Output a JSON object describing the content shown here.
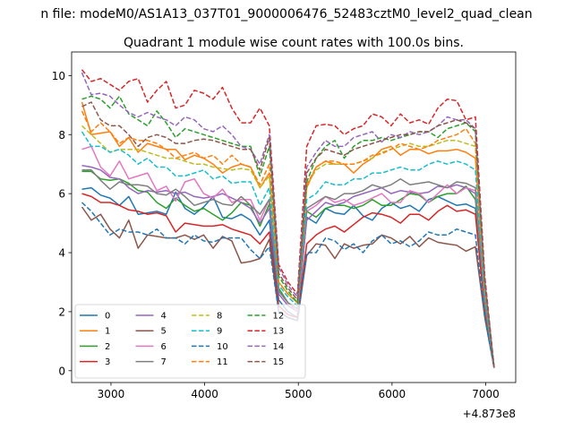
{
  "suptitle": "n file: modeM0/AS1A13_037T01_9000006476_52483cztM0_level2_quad_clean",
  "chart_data": {
    "type": "line",
    "title": "Quadrant 1 module wise count rates with 100.0s bins.",
    "xlabel": "",
    "ylabel": "",
    "x_offset_label": "+4.873e8",
    "xlim": [
      2580,
      7320
    ],
    "ylim": [
      -0.4,
      10.8
    ],
    "xticks": [
      3000,
      4000,
      5000,
      6000,
      7000
    ],
    "yticks": [
      0,
      2,
      4,
      6,
      8,
      10
    ],
    "grid": false,
    "legend_placement": "lower-left",
    "legend_columns": 4,
    "x": [
      2690,
      2790,
      2890,
      2990,
      3090,
      3190,
      3290,
      3390,
      3490,
      3590,
      3690,
      3790,
      3890,
      3990,
      4090,
      4190,
      4290,
      4390,
      4490,
      4590,
      4690,
      4790,
      4890,
      4990,
      5090,
      5190,
      5290,
      5390,
      5490,
      5590,
      5690,
      5790,
      5890,
      5990,
      6090,
      6190,
      6290,
      6390,
      6490,
      6590,
      6690,
      6790,
      6890,
      6990,
      7090
    ],
    "series": [
      {
        "name": "0",
        "color": "#1f77b4",
        "dash": "solid",
        "values": [
          6.15,
          6.2,
          5.95,
          5.85,
          5.6,
          5.9,
          5.3,
          5.35,
          5.4,
          5.3,
          6.05,
          5.5,
          5.3,
          5.55,
          5.9,
          5.2,
          5.15,
          5.3,
          5.1,
          4.6,
          5.1,
          2.4,
          2.0,
          1.8,
          5.2,
          5.0,
          5.5,
          5.35,
          5.3,
          5.6,
          5.25,
          5.1,
          5.5,
          5.7,
          5.5,
          5.6,
          5.4,
          5.8,
          5.9,
          5.75,
          5.6,
          5.65,
          5.5,
          2.0,
          0.1
        ]
      },
      {
        "name": "1",
        "color": "#ff7f0e",
        "dash": "solid",
        "values": [
          9.1,
          8.0,
          8.05,
          8.1,
          7.6,
          7.9,
          7.4,
          7.7,
          7.6,
          7.5,
          7.5,
          7.15,
          7.3,
          7.2,
          7.0,
          6.7,
          6.9,
          7.0,
          6.9,
          6.2,
          6.7,
          3.0,
          2.6,
          2.3,
          6.2,
          6.9,
          7.1,
          7.0,
          7.0,
          6.7,
          7.0,
          7.2,
          7.5,
          7.6,
          7.3,
          7.5,
          7.5,
          7.35,
          7.45,
          7.45,
          7.5,
          7.4,
          7.2,
          2.6,
          0.1
        ]
      },
      {
        "name": "2",
        "color": "#2ca02c",
        "dash": "solid",
        "values": [
          6.75,
          6.75,
          6.5,
          6.45,
          6.5,
          6.35,
          6.1,
          6.05,
          5.7,
          5.5,
          5.85,
          5.6,
          5.4,
          5.5,
          5.3,
          5.1,
          5.35,
          5.7,
          5.6,
          4.9,
          5.65,
          2.8,
          2.3,
          2.1,
          5.4,
          5.2,
          5.5,
          5.6,
          5.6,
          5.5,
          5.6,
          5.8,
          5.6,
          5.6,
          5.8,
          6.0,
          5.95,
          5.7,
          5.9,
          6.0,
          6.0,
          6.25,
          5.8,
          2.2,
          0.1
        ]
      },
      {
        "name": "3",
        "color": "#d62728",
        "dash": "solid",
        "values": [
          6.0,
          5.9,
          5.7,
          5.7,
          5.6,
          5.45,
          5.4,
          5.3,
          5.35,
          5.25,
          4.7,
          5.0,
          4.95,
          4.9,
          4.9,
          4.95,
          4.8,
          4.7,
          4.6,
          4.3,
          4.7,
          2.2,
          1.9,
          1.8,
          4.3,
          4.6,
          4.8,
          4.9,
          4.7,
          4.95,
          5.2,
          5.35,
          5.3,
          5.2,
          5.0,
          5.3,
          5.3,
          5.1,
          5.4,
          5.6,
          5.4,
          5.45,
          5.3,
          2.0,
          0.1
        ]
      },
      {
        "name": "4",
        "color": "#9467bd",
        "dash": "solid",
        "values": [
          6.95,
          6.9,
          6.8,
          6.55,
          6.5,
          6.2,
          6.0,
          6.1,
          6.05,
          6.1,
          6.0,
          6.05,
          5.9,
          5.85,
          5.9,
          6.0,
          5.85,
          5.7,
          5.5,
          5.0,
          5.5,
          2.6,
          2.2,
          2.0,
          5.1,
          5.4,
          5.7,
          5.6,
          5.7,
          5.9,
          6.0,
          6.1,
          6.2,
          6.0,
          6.1,
          6.05,
          6.0,
          6.05,
          6.25,
          6.2,
          6.3,
          6.2,
          6.0,
          2.4,
          0.1
        ]
      },
      {
        "name": "5",
        "color": "#8c564b",
        "dash": "solid",
        "values": [
          5.55,
          5.1,
          5.3,
          4.8,
          4.5,
          5.1,
          4.15,
          4.6,
          4.55,
          4.5,
          4.5,
          4.6,
          4.45,
          4.6,
          4.15,
          4.55,
          4.4,
          3.65,
          3.7,
          3.8,
          4.45,
          2.0,
          1.8,
          1.7,
          3.9,
          4.3,
          4.25,
          3.8,
          4.3,
          4.15,
          4.25,
          4.3,
          4.6,
          4.5,
          4.3,
          4.55,
          4.2,
          4.5,
          4.35,
          4.3,
          4.25,
          4.05,
          4.2,
          1.8,
          0.1
        ]
      },
      {
        "name": "6",
        "color": "#e377c2",
        "dash": "solid",
        "values": [
          7.5,
          7.6,
          6.9,
          6.6,
          7.1,
          6.5,
          6.6,
          6.7,
          6.1,
          6.25,
          5.75,
          6.4,
          6.5,
          6.0,
          5.85,
          6.15,
          5.7,
          5.8,
          5.8,
          5.1,
          5.8,
          2.7,
          2.3,
          2.0,
          5.4,
          5.6,
          5.9,
          5.7,
          5.8,
          5.6,
          5.7,
          5.85,
          6.0,
          5.7,
          5.7,
          6.1,
          6.0,
          5.7,
          6.0,
          6.3,
          6.0,
          6.2,
          6.1,
          2.3,
          0.1
        ]
      },
      {
        "name": "7",
        "color": "#7f7f7f",
        "dash": "solid",
        "values": [
          6.8,
          6.8,
          6.45,
          6.15,
          6.4,
          6.3,
          6.3,
          6.25,
          6.0,
          5.95,
          6.15,
          5.9,
          5.6,
          5.7,
          5.8,
          5.65,
          5.6,
          5.9,
          5.6,
          5.3,
          5.8,
          2.7,
          2.3,
          2.1,
          5.5,
          5.7,
          5.9,
          5.8,
          6.0,
          6.0,
          6.1,
          6.3,
          6.2,
          6.3,
          6.5,
          6.3,
          6.35,
          6.4,
          6.3,
          6.2,
          6.4,
          6.35,
          6.2,
          2.3,
          0.1
        ]
      },
      {
        "name": "8",
        "color": "#bcbd22",
        "dash": "dashed",
        "values": [
          8.3,
          8.0,
          7.7,
          7.4,
          7.5,
          7.5,
          7.5,
          7.4,
          7.3,
          7.2,
          7.2,
          7.1,
          7.0,
          7.0,
          6.9,
          6.85,
          6.8,
          6.85,
          6.8,
          6.2,
          6.6,
          3.0,
          2.6,
          2.3,
          6.3,
          6.8,
          7.0,
          7.0,
          7.0,
          7.0,
          7.1,
          7.2,
          7.4,
          7.5,
          7.6,
          7.7,
          7.6,
          7.6,
          7.7,
          7.8,
          7.8,
          7.7,
          7.6,
          2.7,
          0.1
        ]
      },
      {
        "name": "9",
        "color": "#17becf",
        "dash": "dashed",
        "values": [
          8.1,
          7.6,
          7.6,
          7.4,
          7.5,
          7.3,
          7.0,
          7.2,
          6.9,
          6.9,
          6.6,
          6.6,
          6.7,
          6.8,
          6.5,
          6.6,
          6.35,
          6.4,
          6.4,
          5.6,
          6.2,
          2.9,
          2.5,
          2.2,
          5.8,
          6.0,
          6.4,
          6.3,
          6.3,
          6.5,
          6.5,
          6.7,
          6.7,
          6.8,
          6.9,
          6.8,
          6.8,
          7.0,
          7.1,
          7.0,
          7.1,
          7.0,
          6.8,
          2.5,
          0.1
        ]
      },
      {
        "name": "10",
        "color": "#1f77b4",
        "dash": "dashed",
        "values": [
          5.7,
          5.4,
          5.0,
          4.6,
          4.8,
          4.7,
          4.7,
          4.6,
          4.8,
          4.5,
          4.5,
          4.3,
          4.6,
          4.4,
          4.35,
          4.5,
          4.5,
          4.5,
          4.1,
          3.8,
          4.2,
          2.0,
          1.8,
          1.7,
          4.0,
          4.0,
          4.5,
          4.4,
          4.1,
          4.3,
          4.0,
          4.4,
          4.6,
          4.3,
          4.4,
          4.2,
          4.4,
          4.7,
          4.6,
          4.6,
          4.8,
          4.7,
          4.6,
          1.8,
          0.1
        ]
      },
      {
        "name": "11",
        "color": "#ff7f0e",
        "dash": "dashed",
        "values": [
          8.8,
          8.1,
          8.4,
          8.1,
          7.7,
          7.9,
          7.8,
          7.8,
          7.7,
          7.5,
          7.2,
          7.3,
          7.4,
          7.2,
          7.3,
          7.0,
          7.3,
          7.0,
          6.9,
          6.3,
          7.0,
          3.0,
          2.6,
          2.3,
          6.3,
          6.9,
          7.1,
          7.1,
          7.0,
          7.0,
          7.1,
          7.3,
          7.35,
          7.5,
          7.7,
          7.6,
          7.5,
          7.6,
          7.8,
          7.9,
          8.0,
          8.2,
          7.7,
          2.8,
          0.1
        ]
      },
      {
        "name": "12",
        "color": "#2ca02c",
        "dash": "dashed",
        "values": [
          9.2,
          9.3,
          9.2,
          8.9,
          9.3,
          8.7,
          8.5,
          8.3,
          8.8,
          8.4,
          7.9,
          8.2,
          8.1,
          8.0,
          7.9,
          7.8,
          7.7,
          7.6,
          7.6,
          6.6,
          7.6,
          3.2,
          2.7,
          2.3,
          6.4,
          7.2,
          7.6,
          7.8,
          7.2,
          7.6,
          7.8,
          7.8,
          7.9,
          7.8,
          7.9,
          8.0,
          8.1,
          8.1,
          7.9,
          8.2,
          8.3,
          8.4,
          8.1,
          3.0,
          0.1
        ]
      },
      {
        "name": "13",
        "color": "#d62728",
        "dash": "dashed",
        "values": [
          10.2,
          9.8,
          9.9,
          9.7,
          9.5,
          9.8,
          9.9,
          9.1,
          9.5,
          9.8,
          8.9,
          9.0,
          9.5,
          9.4,
          9.2,
          9.6,
          8.9,
          8.4,
          8.4,
          8.9,
          8.3,
          3.6,
          3.0,
          2.6,
          7.6,
          8.3,
          8.35,
          8.3,
          8.0,
          8.2,
          8.3,
          8.7,
          8.6,
          8.3,
          8.7,
          8.4,
          8.5,
          8.35,
          8.9,
          9.2,
          9.15,
          8.5,
          8.6,
          3.2,
          0.1
        ]
      },
      {
        "name": "14",
        "color": "#9467bd",
        "dash": "dashed",
        "values": [
          10.1,
          9.35,
          9.4,
          9.3,
          9.0,
          8.75,
          8.6,
          8.75,
          8.6,
          8.5,
          8.3,
          8.6,
          8.5,
          8.2,
          8.1,
          8.3,
          8.0,
          7.6,
          7.5,
          7.0,
          8.0,
          3.5,
          2.9,
          2.5,
          6.9,
          7.4,
          7.8,
          7.6,
          7.6,
          7.9,
          8.0,
          8.1,
          7.75,
          8.0,
          7.9,
          8.1,
          8.0,
          8.1,
          8.3,
          8.6,
          8.5,
          8.5,
          8.2,
          3.1,
          0.1
        ]
      },
      {
        "name": "15",
        "color": "#8c564b",
        "dash": "dashed",
        "values": [
          8.95,
          9.1,
          8.5,
          8.3,
          8.3,
          8.0,
          7.6,
          7.9,
          8.0,
          7.9,
          7.7,
          7.7,
          7.8,
          7.85,
          7.8,
          7.7,
          7.6,
          7.5,
          7.5,
          6.8,
          7.9,
          3.3,
          2.8,
          2.4,
          6.7,
          7.2,
          7.5,
          7.4,
          7.3,
          7.5,
          7.6,
          7.7,
          7.8,
          7.9,
          8.0,
          8.0,
          8.1,
          8.1,
          8.3,
          8.4,
          8.5,
          8.4,
          8.2,
          3.0,
          0.1
        ]
      }
    ]
  }
}
